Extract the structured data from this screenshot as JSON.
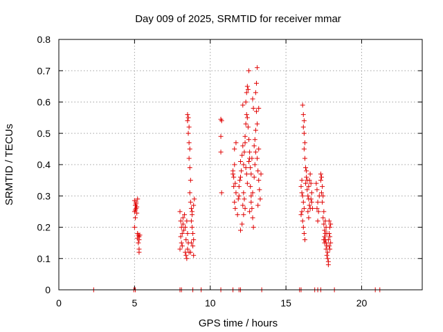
{
  "colors": {
    "marker": "#e00000",
    "axis": "#000000",
    "grid": "#a0a0a0",
    "background": "#ffffff"
  },
  "chart_data": {
    "type": "scatter",
    "title": "Day 009 of 2025, SRMTID for receiver mmar",
    "xlabel": "GPS time / hours",
    "ylabel": "SRMTID / TECUs",
    "xlim": [
      0,
      24
    ],
    "ylim": [
      0,
      0.8
    ],
    "xticks": [
      0,
      5,
      10,
      15,
      20
    ],
    "xtick_labels": [
      "0",
      "5",
      "10",
      "15",
      "20"
    ],
    "yticks": [
      0,
      0.1,
      0.2,
      0.3,
      0.4,
      0.5,
      0.6,
      0.7,
      0.8
    ],
    "ytick_labels": [
      "0",
      "0.1",
      "0.2",
      "0.3",
      "0.4",
      "0.5",
      "0.6",
      "0.7",
      "0.8"
    ],
    "grid": true,
    "marker": "+",
    "series": [
      {
        "name": "SRMTID",
        "points": [
          [
            2.3,
            0
          ],
          [
            4.95,
            0
          ],
          [
            5.05,
            0
          ],
          [
            8.0,
            0
          ],
          [
            8.1,
            0
          ],
          [
            8.85,
            0
          ],
          [
            9.4,
            0
          ],
          [
            10.7,
            0
          ],
          [
            11.5,
            0
          ],
          [
            11.9,
            0
          ],
          [
            12.0,
            0
          ],
          [
            13.4,
            0
          ],
          [
            15.9,
            0
          ],
          [
            16.0,
            0
          ],
          [
            16.9,
            0
          ],
          [
            17.1,
            0
          ],
          [
            17.3,
            0
          ],
          [
            18.2,
            0
          ],
          [
            20.9,
            0
          ],
          [
            21.2,
            0
          ],
          [
            5.0,
            0.285
          ],
          [
            5.05,
            0.27
          ],
          [
            5.1,
            0.26
          ],
          [
            5.0,
            0.25
          ],
          [
            5.15,
            0.245
          ],
          [
            5.05,
            0.23
          ],
          [
            5.1,
            0.28
          ],
          [
            5.2,
            0.29
          ],
          [
            5.0,
            0.2
          ],
          [
            5.1,
            0.275
          ],
          [
            5.15,
            0.265
          ],
          [
            5.05,
            0.255
          ],
          [
            5.2,
            0.18
          ],
          [
            5.25,
            0.175
          ],
          [
            5.3,
            0.17
          ],
          [
            5.2,
            0.165
          ],
          [
            5.3,
            0.16
          ],
          [
            5.25,
            0.15
          ],
          [
            5.3,
            0.13
          ],
          [
            5.3,
            0.12
          ],
          [
            5.35,
            0.175
          ],
          [
            8.0,
            0.25
          ],
          [
            8.05,
            0.22
          ],
          [
            8.1,
            0.2
          ],
          [
            8.15,
            0.18
          ],
          [
            8.2,
            0.21
          ],
          [
            8.25,
            0.19
          ],
          [
            8.1,
            0.15
          ],
          [
            8.15,
            0.14
          ],
          [
            8.0,
            0.13
          ],
          [
            8.3,
            0.24
          ],
          [
            8.2,
            0.23
          ],
          [
            8.05,
            0.17
          ],
          [
            8.35,
            0.12
          ],
          [
            8.4,
            0.11
          ],
          [
            8.45,
            0.1
          ],
          [
            8.5,
            0.13
          ],
          [
            8.4,
            0.16
          ],
          [
            8.5,
            0.18
          ],
          [
            8.35,
            0.2
          ],
          [
            8.45,
            0.22
          ],
          [
            8.55,
            0.15
          ],
          [
            8.6,
            0.12
          ],
          [
            8.5,
            0.56
          ],
          [
            8.55,
            0.55
          ],
          [
            8.5,
            0.54
          ],
          [
            8.6,
            0.52
          ],
          [
            8.55,
            0.5
          ],
          [
            8.6,
            0.47
          ],
          [
            8.65,
            0.45
          ],
          [
            8.6,
            0.42
          ],
          [
            8.65,
            0.39
          ],
          [
            8.7,
            0.35
          ],
          [
            8.65,
            0.31
          ],
          [
            8.7,
            0.28
          ],
          [
            8.75,
            0.26
          ],
          [
            8.8,
            0.25
          ],
          [
            8.75,
            0.22
          ],
          [
            8.8,
            0.2
          ],
          [
            8.85,
            0.18
          ],
          [
            8.9,
            0.16
          ],
          [
            8.85,
            0.14
          ],
          [
            8.9,
            0.11
          ],
          [
            8.9,
            0.27
          ],
          [
            8.95,
            0.29
          ],
          [
            8.8,
            0.24
          ],
          [
            8.7,
            0.12
          ],
          [
            8.75,
            0.15
          ],
          [
            10.7,
            0.545
          ],
          [
            10.75,
            0.54
          ],
          [
            10.7,
            0.49
          ],
          [
            10.7,
            0.44
          ],
          [
            10.75,
            0.31
          ],
          [
            11.5,
            0.37
          ],
          [
            11.55,
            0.36
          ],
          [
            11.6,
            0.4
          ],
          [
            11.5,
            0.38
          ],
          [
            11.65,
            0.34
          ],
          [
            11.55,
            0.33
          ],
          [
            11.7,
            0.31
          ],
          [
            11.6,
            0.28
          ],
          [
            11.65,
            0.26
          ],
          [
            11.7,
            0.47
          ],
          [
            11.6,
            0.45
          ],
          [
            11.8,
            0.24
          ],
          [
            11.9,
            0.3
          ],
          [
            11.85,
            0.29
          ],
          [
            11.95,
            0.35
          ],
          [
            11.9,
            0.33
          ],
          [
            12.0,
            0.36
          ],
          [
            12.05,
            0.38
          ],
          [
            12.0,
            0.41
          ],
          [
            12.1,
            0.43
          ],
          [
            12.15,
            0.46
          ],
          [
            12.0,
            0.19
          ],
          [
            12.1,
            0.21
          ],
          [
            12.15,
            0.27
          ],
          [
            12.2,
            0.4
          ],
          [
            12.25,
            0.44
          ],
          [
            12.3,
            0.47
          ],
          [
            12.3,
            0.49
          ],
          [
            12.35,
            0.53
          ],
          [
            12.4,
            0.56
          ],
          [
            12.35,
            0.6
          ],
          [
            12.4,
            0.63
          ],
          [
            12.45,
            0.65
          ],
          [
            12.5,
            0.64
          ],
          [
            12.55,
            0.7
          ],
          [
            12.45,
            0.55
          ],
          [
            12.5,
            0.52
          ],
          [
            12.55,
            0.48
          ],
          [
            12.6,
            0.42
          ],
          [
            12.65,
            0.39
          ],
          [
            12.7,
            0.37
          ],
          [
            12.65,
            0.33
          ],
          [
            12.7,
            0.3
          ],
          [
            12.75,
            0.26
          ],
          [
            12.8,
            0.23
          ],
          [
            12.85,
            0.2
          ],
          [
            12.6,
            0.25
          ],
          [
            12.7,
            0.28
          ],
          [
            12.8,
            0.31
          ],
          [
            12.9,
            0.36
          ],
          [
            12.95,
            0.4
          ],
          [
            13.0,
            0.44
          ],
          [
            12.95,
            0.48
          ],
          [
            13.0,
            0.51
          ],
          [
            13.05,
            0.57
          ],
          [
            13.0,
            0.63
          ],
          [
            13.05,
            0.66
          ],
          [
            13.1,
            0.71
          ],
          [
            12.85,
            0.58
          ],
          [
            12.9,
            0.46
          ],
          [
            13.1,
            0.42
          ],
          [
            13.15,
            0.38
          ],
          [
            13.2,
            0.35
          ],
          [
            13.25,
            0.32
          ],
          [
            13.3,
            0.29
          ],
          [
            13.35,
            0.37
          ],
          [
            13.2,
            0.45
          ],
          [
            13.1,
            0.53
          ],
          [
            12.2,
            0.31
          ],
          [
            12.25,
            0.29
          ],
          [
            12.4,
            0.37
          ],
          [
            12.45,
            0.34
          ],
          [
            12.55,
            0.41
          ],
          [
            12.6,
            0.44
          ],
          [
            12.75,
            0.42
          ],
          [
            12.3,
            0.26
          ],
          [
            12.2,
            0.24
          ],
          [
            13.15,
            0.27
          ],
          [
            13.2,
            0.58
          ],
          [
            12.15,
            0.59
          ],
          [
            12.8,
            0.61
          ],
          [
            12.35,
            0.39
          ],
          [
            16.0,
            0.33
          ],
          [
            16.05,
            0.31
          ],
          [
            16.1,
            0.3
          ],
          [
            16.15,
            0.28
          ],
          [
            16.2,
            0.26
          ],
          [
            16.05,
            0.25
          ],
          [
            16.1,
            0.22
          ],
          [
            16.15,
            0.2
          ],
          [
            16.2,
            0.18
          ],
          [
            16.25,
            0.16
          ],
          [
            16.1,
            0.59
          ],
          [
            16.15,
            0.56
          ],
          [
            16.2,
            0.54
          ],
          [
            16.15,
            0.52
          ],
          [
            16.2,
            0.5
          ],
          [
            16.25,
            0.47
          ],
          [
            16.2,
            0.45
          ],
          [
            16.25,
            0.42
          ],
          [
            16.3,
            0.39
          ],
          [
            16.35,
            0.36
          ],
          [
            16.3,
            0.34
          ],
          [
            16.4,
            0.32
          ],
          [
            16.45,
            0.3
          ],
          [
            16.5,
            0.29
          ],
          [
            16.55,
            0.27
          ],
          [
            16.6,
            0.26
          ],
          [
            16.5,
            0.33
          ],
          [
            16.55,
            0.35
          ],
          [
            16.6,
            0.37
          ],
          [
            16.65,
            0.34
          ],
          [
            16.7,
            0.31
          ],
          [
            16.65,
            0.29
          ],
          [
            16.7,
            0.28
          ],
          [
            16.75,
            0.26
          ],
          [
            16.4,
            0.35
          ],
          [
            16.35,
            0.38
          ],
          [
            16.45,
            0.25
          ],
          [
            16.5,
            0.23
          ],
          [
            16.0,
            0.24
          ],
          [
            16.05,
            0.35
          ],
          [
            17.0,
            0.34
          ],
          [
            17.05,
            0.32
          ],
          [
            17.1,
            0.28
          ],
          [
            17.05,
            0.26
          ],
          [
            17.1,
            0.22
          ],
          [
            17.15,
            0.25
          ],
          [
            17.2,
            0.3
          ],
          [
            17.3,
            0.37
          ],
          [
            17.35,
            0.36
          ],
          [
            17.3,
            0.35
          ],
          [
            17.4,
            0.33
          ],
          [
            17.35,
            0.31
          ],
          [
            17.45,
            0.3
          ],
          [
            17.4,
            0.28
          ],
          [
            17.5,
            0.25
          ],
          [
            17.45,
            0.23
          ],
          [
            17.5,
            0.21
          ],
          [
            17.55,
            0.19
          ],
          [
            17.6,
            0.18
          ],
          [
            17.55,
            0.17
          ],
          [
            17.6,
            0.16
          ],
          [
            17.65,
            0.15
          ],
          [
            17.7,
            0.14
          ],
          [
            17.65,
            0.13
          ],
          [
            17.7,
            0.11
          ],
          [
            17.75,
            0.1
          ],
          [
            17.8,
            0.09
          ],
          [
            17.8,
            0.08
          ],
          [
            17.75,
            0.12
          ],
          [
            17.85,
            0.14
          ],
          [
            17.8,
            0.16
          ],
          [
            17.85,
            0.18
          ],
          [
            17.9,
            0.2
          ],
          [
            17.85,
            0.22
          ],
          [
            17.9,
            0.17
          ],
          [
            17.95,
            0.15
          ],
          [
            17.9,
            0.13
          ],
          [
            17.6,
            0.22
          ],
          [
            17.65,
            0.2
          ],
          [
            17.7,
            0.18
          ],
          [
            17.5,
            0.16
          ],
          [
            17.55,
            0.15
          ],
          [
            17.95,
            0.21
          ]
        ]
      }
    ]
  }
}
